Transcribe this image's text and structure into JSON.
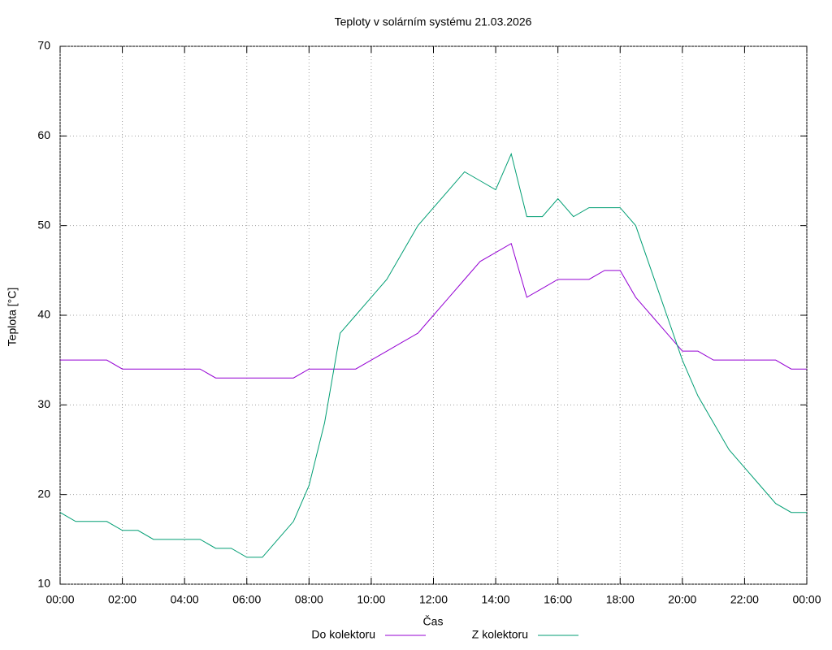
{
  "chart_data": {
    "type": "line",
    "title": "Teploty v solárním systému 21.03.2026",
    "x_label": "Čas",
    "y_label": "Teplota [°C]",
    "x": [
      0,
      0.5,
      1,
      1.5,
      2,
      2.5,
      3,
      3.5,
      4,
      4.5,
      5,
      5.5,
      6,
      6.5,
      7,
      7.5,
      8,
      8.5,
      9,
      9.5,
      10,
      10.5,
      11,
      11.5,
      12,
      12.5,
      13,
      13.5,
      14,
      14.5,
      15,
      15.5,
      16,
      16.5,
      17,
      17.5,
      18,
      18.5,
      19,
      19.5,
      20,
      20.5,
      21,
      21.5,
      22,
      22.5,
      23,
      23.5,
      24
    ],
    "series": [
      {
        "name": "Do kolektoru",
        "color": "#9400d3",
        "values": [
          35,
          35,
          35,
          35,
          34,
          34,
          34,
          34,
          34,
          34,
          33,
          33,
          33,
          33,
          33,
          33,
          34,
          34,
          34,
          34,
          35,
          36,
          37,
          38,
          40,
          42,
          44,
          46,
          47,
          48,
          42,
          43,
          44,
          44,
          44,
          45,
          45,
          42,
          40,
          38,
          36,
          36,
          35,
          35,
          35,
          35,
          35,
          34,
          34
        ]
      },
      {
        "name": "Z kolektoru",
        "color": "#009e73",
        "values": [
          18,
          17,
          17,
          17,
          16,
          16,
          15,
          15,
          15,
          15,
          14,
          14,
          13,
          13,
          15,
          17,
          21,
          28,
          38,
          40,
          42,
          44,
          47,
          50,
          52,
          54,
          56,
          55,
          54,
          58,
          51,
          51,
          53,
          51,
          52,
          52,
          52,
          50,
          45,
          40,
          35,
          31,
          28,
          25,
          23,
          21,
          19,
          18,
          18
        ]
      }
    ],
    "xlim": [
      0,
      24
    ],
    "xticks": [
      {
        "value": 0,
        "label": "00:00"
      },
      {
        "value": 2,
        "label": "02:00"
      },
      {
        "value": 4,
        "label": "04:00"
      },
      {
        "value": 6,
        "label": "06:00"
      },
      {
        "value": 8,
        "label": "08:00"
      },
      {
        "value": 10,
        "label": "10:00"
      },
      {
        "value": 12,
        "label": "12:00"
      },
      {
        "value": 14,
        "label": "14:00"
      },
      {
        "value": 16,
        "label": "16:00"
      },
      {
        "value": 18,
        "label": "18:00"
      },
      {
        "value": 20,
        "label": "20:00"
      },
      {
        "value": 22,
        "label": "22:00"
      },
      {
        "value": 24,
        "label": "00:00"
      }
    ],
    "ylim": [
      10,
      70
    ],
    "yticks": [
      10,
      20,
      30,
      40,
      50,
      60,
      70
    ],
    "grid": true,
    "legend": "bottom"
  }
}
